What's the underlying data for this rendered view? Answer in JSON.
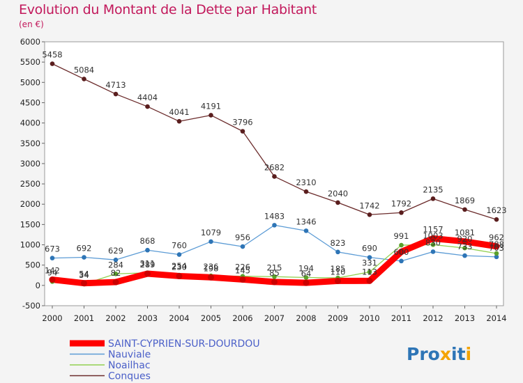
{
  "title": "Evolution du Montant de la Dette par Habitant",
  "unit_label": "(en €)",
  "chart_data": {
    "type": "line",
    "title": "Evolution du Montant de la Dette par Habitant",
    "ylabel": "(en €)",
    "xlabel": "",
    "x": [
      "2000",
      "2001",
      "2002",
      "2003",
      "2004",
      "2005",
      "2006",
      "2007",
      "2008",
      "2009",
      "2010",
      "2011",
      "2012",
      "2013",
      "2014"
    ],
    "ylim": [
      -500,
      6000
    ],
    "yticks": [
      "-500",
      "0",
      "500",
      "1000",
      "1500",
      "2000",
      "2500",
      "3000",
      "3500",
      "4000",
      "4500",
      "5000",
      "5500",
      "6000"
    ],
    "grid": false,
    "legend_placement": "bottom-left",
    "series": [
      {
        "name": "SAINT-CYPRIEN-SUR-DOURDOU",
        "color": "#ff0000",
        "values": [
          142,
          54,
          82,
          289,
          230,
          198,
          145,
          85,
          64,
          110,
          113,
          829,
          1157,
          1081,
          962
        ],
        "labels": [
          "142",
          "54",
          "82",
          "289",
          "230",
          "198",
          "145",
          "85",
          "64",
          "110",
          "113",
          "",
          "1157",
          "1081",
          "962"
        ]
      },
      {
        "name": "Nauviale",
        "color": "#5b9bd5",
        "values": [
          673,
          692,
          629,
          868,
          760,
          1079,
          956,
          1483,
          1346,
          823,
          690,
          600,
          830,
          733,
          703
        ],
        "labels": [
          "673",
          "692",
          "629",
          "868",
          "760",
          "1079",
          "956",
          "1483",
          "1346",
          "823",
          "690",
          "600",
          "830",
          "733",
          "703"
        ]
      },
      {
        "name": "Noailhac",
        "color": "#92d050",
        "values": [
          94,
          34,
          284,
          311,
          254,
          236,
          226,
          215,
          194,
          185,
          331,
          991,
          1003,
          920,
          788
        ],
        "labels": [
          "94",
          "34",
          "284",
          "311",
          "254",
          "236",
          "226",
          "215",
          "194",
          "185",
          "331",
          "991",
          "1003",
          "920",
          "788"
        ]
      },
      {
        "name": "Conques",
        "color": "#6b2b2b",
        "values": [
          5458,
          5084,
          4713,
          4404,
          4041,
          4191,
          3796,
          2682,
          2310,
          2040,
          1742,
          1792,
          2135,
          1869,
          1623
        ],
        "labels": [
          "5458",
          "5084",
          "4713",
          "4404",
          "4041",
          "4191",
          "3796",
          "2682",
          "2310",
          "2040",
          "1742",
          "1792",
          "2135",
          "1869",
          "1623"
        ]
      }
    ]
  },
  "logo": {
    "text": "Proxiti",
    "letter_colors": [
      "#2e75b6",
      "#2e75b6",
      "#2e75b6",
      "#f4a300",
      "#2e75b6",
      "#2e75b6",
      "#f4a300"
    ]
  }
}
